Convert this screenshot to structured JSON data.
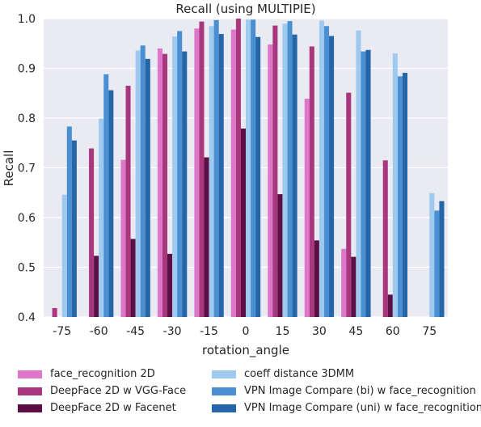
{
  "chart_data": {
    "type": "bar",
    "title": "Recall (using MULTIPIE)",
    "xlabel": "rotation_angle",
    "ylabel": "Recall",
    "ylim": [
      0.4,
      1.0
    ],
    "yticks": [
      "0.4",
      "0.5",
      "0.6",
      "0.7",
      "0.8",
      "0.9",
      "1.0"
    ],
    "categories": [
      "-75",
      "-60",
      "-45",
      "-30",
      "-15",
      "0",
      "15",
      "30",
      "45",
      "60",
      "75"
    ],
    "grid": true,
    "legend_position": "bottom",
    "series": [
      {
        "name": "face_recognition 2D",
        "color": "#dd77c9",
        "values": [
          null,
          null,
          0.716,
          0.94,
          0.98,
          0.978,
          0.948,
          0.839,
          0.537,
          null,
          null
        ]
      },
      {
        "name": "DeepFace 2D w VGG-Face",
        "color": "#a8377d",
        "values": [
          0.418,
          0.739,
          0.865,
          0.929,
          0.994,
          1.0,
          0.986,
          0.944,
          0.851,
          0.715,
          null
        ]
      },
      {
        "name": "DeepFace 2D w Facenet",
        "color": "#5c0f45",
        "values": [
          null,
          0.523,
          0.557,
          0.527,
          0.721,
          0.779,
          0.647,
          0.554,
          0.521,
          0.445,
          null
        ]
      },
      {
        "name": "coeff distance 3DMM",
        "color": "#9fcaef",
        "values": [
          0.646,
          0.799,
          0.936,
          0.964,
          0.985,
          0.998,
          0.99,
          0.996,
          0.976,
          0.93,
          0.649
        ]
      },
      {
        "name": "VPN Image Compare (bi) w face_recognition",
        "color": "#4a8fd1",
        "values": [
          0.783,
          0.888,
          0.946,
          0.975,
          0.997,
          0.998,
          0.995,
          0.985,
          0.934,
          0.884,
          0.614
        ]
      },
      {
        "name": "VPN Image Compare (uni) w face_recognition",
        "color": "#2466a8",
        "values": [
          0.755,
          0.856,
          0.919,
          0.934,
          0.969,
          0.963,
          0.968,
          0.965,
          0.937,
          0.891,
          0.633
        ]
      }
    ]
  }
}
